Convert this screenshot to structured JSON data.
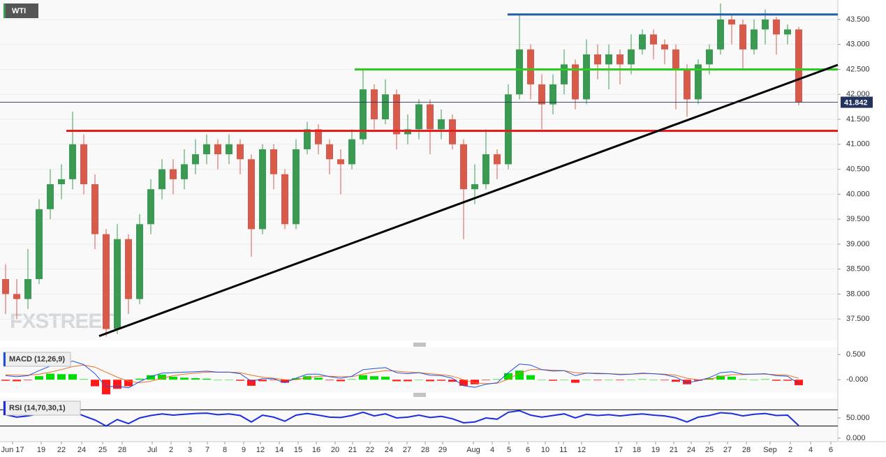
{
  "chart_data": [
    {
      "type": "candlestick",
      "title": "WTI",
      "watermark": "FXSTREET",
      "x": [
        2,
        6,
        10,
        14,
        18,
        22,
        26,
        30,
        34,
        38,
        42,
        46,
        50,
        54,
        58,
        62,
        66,
        70,
        74,
        78,
        82,
        86,
        90,
        94,
        98,
        102,
        106,
        110,
        114,
        118,
        122,
        126,
        130,
        134,
        138,
        142,
        146,
        150,
        154,
        158,
        162,
        166,
        170,
        174,
        178,
        182,
        186,
        190,
        194,
        198,
        202,
        206,
        210,
        214,
        218,
        222,
        226,
        230,
        234,
        238,
        242,
        246,
        250,
        254,
        258,
        262,
        266,
        270,
        274,
        278,
        282,
        286
      ],
      "open": [
        38.3,
        38.0,
        37.9,
        38.3,
        39.7,
        40.2,
        40.3,
        41.0,
        40.2,
        39.2,
        37.3,
        39.1,
        37.9,
        39.4,
        40.1,
        40.5,
        40.3,
        40.6,
        40.8,
        41.0,
        40.8,
        41.0,
        40.7,
        39.3,
        40.9,
        40.4,
        39.4,
        40.9,
        41.3,
        41.0,
        40.7,
        40.6,
        41.1,
        42.1,
        41.5,
        42.0,
        41.2,
        41.3,
        41.8,
        41.3,
        41.5,
        41.0,
        40.1,
        40.2,
        40.8,
        40.6,
        42.0,
        42.9,
        42.2,
        41.8,
        42.2,
        42.6,
        41.9,
        42.8,
        42.6,
        42.8,
        42.6,
        42.9,
        43.2,
        43.0,
        42.9,
        42.5,
        41.9,
        42.6,
        42.9,
        43.5,
        43.4,
        42.9,
        43.3,
        43.5,
        43.2,
        43.3
      ],
      "high": [
        38.6,
        38.3,
        38.9,
        39.9,
        40.5,
        40.6,
        41.65,
        41.2,
        40.4,
        39.3,
        39.4,
        39.2,
        39.6,
        40.3,
        40.7,
        40.7,
        40.9,
        41.1,
        41.2,
        41.1,
        41.2,
        41.1,
        40.8,
        41.0,
        41.0,
        40.5,
        41.1,
        41.45,
        41.4,
        41.1,
        40.9,
        41.3,
        42.5,
        42.2,
        42.3,
        42.1,
        41.6,
        41.9,
        41.9,
        41.7,
        41.6,
        41.1,
        40.6,
        41.3,
        40.9,
        42.2,
        43.58,
        43.0,
        42.4,
        42.4,
        42.9,
        42.7,
        43.1,
        43.0,
        43.0,
        42.9,
        43.2,
        43.3,
        43.3,
        43.1,
        43.0,
        42.6,
        42.7,
        43.0,
        43.82,
        43.6,
        43.5,
        43.5,
        43.7,
        43.55,
        43.4,
        43.35
      ],
      "low": [
        37.6,
        37.5,
        37.7,
        38.2,
        39.5,
        39.9,
        40.1,
        40.0,
        38.9,
        37.15,
        37.2,
        37.6,
        37.8,
        39.2,
        39.9,
        40.0,
        40.1,
        40.4,
        40.6,
        40.5,
        40.6,
        40.4,
        38.75,
        39.2,
        40.1,
        39.3,
        39.3,
        40.8,
        40.8,
        40.4,
        40.0,
        40.5,
        41.0,
        41.3,
        41.4,
        40.9,
        41.0,
        41.1,
        40.8,
        41.1,
        40.9,
        39.1,
        39.8,
        40.1,
        40.3,
        40.5,
        41.9,
        41.9,
        41.3,
        41.6,
        42.0,
        41.7,
        41.8,
        42.3,
        42.1,
        42.2,
        42.4,
        42.8,
        42.7,
        42.6,
        41.7,
        41.55,
        41.8,
        42.4,
        42.8,
        43.0,
        42.5,
        42.8,
        43.0,
        42.8,
        43.0,
        41.78
      ],
      "close": [
        38.0,
        37.9,
        38.3,
        39.7,
        40.2,
        40.3,
        41.0,
        40.2,
        39.2,
        37.3,
        39.1,
        37.9,
        39.4,
        40.1,
        40.5,
        40.3,
        40.6,
        40.8,
        41.0,
        40.8,
        41.0,
        40.7,
        39.3,
        40.9,
        40.4,
        39.4,
        40.9,
        41.3,
        41.0,
        40.7,
        40.6,
        41.1,
        42.1,
        41.5,
        42.0,
        41.2,
        41.3,
        41.8,
        41.3,
        41.5,
        41.0,
        40.1,
        40.2,
        40.8,
        40.6,
        42.0,
        42.9,
        42.2,
        41.8,
        42.2,
        42.6,
        41.9,
        42.8,
        42.6,
        42.8,
        42.6,
        42.9,
        43.2,
        43.0,
        42.9,
        42.5,
        41.9,
        42.6,
        42.9,
        43.5,
        43.4,
        42.9,
        43.3,
        43.5,
        43.2,
        43.3,
        41.84
      ],
      "up_color": "#3a9a52",
      "down_color": "#d75a4a",
      "xlim": [
        0,
        300
      ],
      "xticks": [
        {
          "value": 4.5,
          "label": "Jun 17"
        },
        {
          "value": 14.75,
          "label": "19"
        },
        {
          "value": 22,
          "label": "22"
        },
        {
          "value": 29.25,
          "label": "24"
        },
        {
          "value": 36.75,
          "label": "25"
        },
        {
          "value": 43.75,
          "label": "28"
        },
        {
          "value": 54.5,
          "label": "Jul"
        },
        {
          "value": 61.25,
          "label": "2"
        },
        {
          "value": 68,
          "label": "3"
        },
        {
          "value": 74.25,
          "label": "7"
        },
        {
          "value": 80.5,
          "label": "8"
        },
        {
          "value": 87.25,
          "label": "9"
        },
        {
          "value": 93.25,
          "label": "12"
        },
        {
          "value": 100,
          "label": "14"
        },
        {
          "value": 106.75,
          "label": "15"
        },
        {
          "value": 113.25,
          "label": "16"
        },
        {
          "value": 120,
          "label": "20"
        },
        {
          "value": 126.25,
          "label": "21"
        },
        {
          "value": 132.5,
          "label": "22"
        },
        {
          "value": 139.25,
          "label": "24"
        },
        {
          "value": 145.75,
          "label": "27"
        },
        {
          "value": 152.25,
          "label": "28"
        },
        {
          "value": 158.5,
          "label": "29"
        },
        {
          "value": 169.5,
          "label": "Aug"
        },
        {
          "value": 176.25,
          "label": "4"
        },
        {
          "value": 182.25,
          "label": "5"
        },
        {
          "value": 189,
          "label": "6"
        },
        {
          "value": 195.25,
          "label": "10"
        },
        {
          "value": 201.75,
          "label": "11"
        },
        {
          "value": 208.25,
          "label": "12"
        },
        {
          "value": 221.5,
          "label": "17"
        },
        {
          "value": 228,
          "label": "18"
        },
        {
          "value": 234.75,
          "label": "19"
        },
        {
          "value": 241.25,
          "label": "21"
        },
        {
          "value": 247.5,
          "label": "24"
        },
        {
          "value": 254,
          "label": "25"
        },
        {
          "value": 260.5,
          "label": "27"
        },
        {
          "value": 267.25,
          "label": "28"
        },
        {
          "value": 275.75,
          "label": "Sep"
        },
        {
          "value": 283,
          "label": "2"
        },
        {
          "value": 290.25,
          "label": "4"
        },
        {
          "value": 297.5,
          "label": "6"
        }
      ],
      "ylim": [
        37.07,
        43.89
      ],
      "yticks": [
        {
          "value": 37.5,
          "label": "37.500"
        },
        {
          "value": 38,
          "label": "38.000"
        },
        {
          "value": 38.5,
          "label": "38.500"
        },
        {
          "value": 39,
          "label": "39.000"
        },
        {
          "value": 39.5,
          "label": "39.500"
        },
        {
          "value": 40,
          "label": "40.000"
        },
        {
          "value": 40.5,
          "label": "40.500"
        },
        {
          "value": 41,
          "label": "41.000"
        },
        {
          "value": 41.5,
          "label": "41.500"
        },
        {
          "value": 42,
          "label": "42.000"
        },
        {
          "value": 42.5,
          "label": "42.500"
        },
        {
          "value": 43,
          "label": "43.000"
        },
        {
          "value": 43.5,
          "label": "43.500"
        }
      ],
      "grid": true,
      "hlines": [
        {
          "value": 43.6,
          "x0": 181.75,
          "color": "#1f5fa8"
        },
        {
          "value": 42.5,
          "x0": 127,
          "color": "#2ecc1e"
        },
        {
          "value": 41.27,
          "x0": 23.75,
          "color": "#e81c1c"
        }
      ],
      "trendline": {
        "x": [
          35.5,
          300
        ],
        "y": [
          37.16,
          42.59
        ],
        "color": "#000000"
      },
      "last_price": {
        "value": 41.842,
        "color": "#23335e"
      }
    },
    {
      "type": "macd",
      "title": "MACD (12,26,9)",
      "macd": [
        0.08,
        0.06,
        0.08,
        0.18,
        0.27,
        0.31,
        0.37,
        0.3,
        0.12,
        -0.14,
        -0.13,
        -0.16,
        -0.04,
        0.06,
        0.13,
        0.14,
        0.15,
        0.16,
        0.17,
        0.15,
        0.15,
        0.12,
        -0.03,
        0.02,
        0.02,
        -0.06,
        0.03,
        0.11,
        0.11,
        0.06,
        0.03,
        0.07,
        0.2,
        0.22,
        0.24,
        0.14,
        0.12,
        0.14,
        0.09,
        0.08,
        0.03,
        -0.12,
        -0.15,
        -0.09,
        -0.06,
        0.14,
        0.31,
        0.29,
        0.2,
        0.17,
        0.18,
        0.08,
        0.13,
        0.12,
        0.12,
        0.1,
        0.11,
        0.13,
        0.12,
        0.1,
        0.05,
        -0.06,
        -0.02,
        0.04,
        0.14,
        0.16,
        0.11,
        0.11,
        0.12,
        0.08,
        0.07,
        -0.08
      ],
      "signal": [
        0.1,
        0.09,
        0.09,
        0.11,
        0.15,
        0.2,
        0.26,
        0.29,
        0.25,
        0.15,
        0.05,
        -0.03,
        -0.06,
        -0.03,
        0.03,
        0.08,
        0.11,
        0.13,
        0.15,
        0.15,
        0.15,
        0.14,
        0.09,
        0.05,
        0.03,
        0.0,
        0.0,
        0.04,
        0.07,
        0.07,
        0.06,
        0.06,
        0.11,
        0.15,
        0.18,
        0.17,
        0.15,
        0.14,
        0.12,
        0.1,
        0.07,
        0.0,
        -0.06,
        -0.08,
        -0.07,
        0.01,
        0.13,
        0.2,
        0.2,
        0.19,
        0.18,
        0.14,
        0.13,
        0.13,
        0.12,
        0.11,
        0.11,
        0.12,
        0.12,
        0.11,
        0.09,
        0.03,
        0.0,
        0.01,
        0.06,
        0.1,
        0.1,
        0.11,
        0.11,
        0.1,
        0.09,
        0.03
      ],
      "hist": [
        -0.02,
        -0.03,
        -0.01,
        0.07,
        0.12,
        0.11,
        0.11,
        0.01,
        -0.13,
        -0.29,
        -0.18,
        -0.13,
        0.02,
        0.09,
        0.1,
        0.06,
        0.04,
        0.03,
        0.02,
        0,
        0,
        -0.02,
        -0.12,
        -0.03,
        -0.01,
        -0.06,
        0.03,
        0.07,
        0.04,
        -0.01,
        -0.03,
        0.01,
        0.09,
        0.07,
        0.06,
        -0.03,
        -0.03,
        0,
        -0.03,
        -0.02,
        -0.04,
        -0.12,
        -0.09,
        -0.01,
        0.01,
        0.13,
        0.18,
        0.09,
        0,
        -0.02,
        0,
        -0.06,
        0,
        -0.01,
        0,
        -0.01,
        0,
        0.01,
        0,
        -0.01,
        -0.04,
        -0.09,
        -0.02,
        0.03,
        0.08,
        0.06,
        0.01,
        0,
        0.01,
        -0.02,
        -0.02,
        -0.11
      ],
      "macd_color": "#2050e0",
      "signal_color": "#f07020",
      "up_color": "#00dd00",
      "down_color": "#ff1a1a",
      "ylim": [
        -0.26,
        0.64
      ],
      "yticks": [
        {
          "value": 0.5,
          "label": "0.500"
        },
        {
          "value": 0,
          "label": "-0.000"
        }
      ]
    },
    {
      "type": "line",
      "title": "RSI (14,70,30,1)",
      "values": [
        58,
        52,
        55,
        60,
        62,
        63,
        66,
        55,
        45,
        30,
        46,
        36,
        50,
        56,
        60,
        57,
        59,
        61,
        62,
        58,
        60,
        56,
        40,
        57,
        52,
        42,
        57,
        61,
        57,
        52,
        51,
        56,
        64,
        55,
        60,
        50,
        52,
        57,
        51,
        54,
        48,
        38,
        40,
        50,
        47,
        64,
        68,
        57,
        52,
        56,
        60,
        50,
        59,
        56,
        58,
        55,
        58,
        60,
        57,
        55,
        50,
        40,
        52,
        56,
        63,
        61,
        55,
        59,
        61,
        56,
        57,
        31
      ],
      "color": "#1a2ee0",
      "ylim": [
        -8.6,
        98.3
      ],
      "yticks": [
        {
          "value": 50,
          "label": "50.000"
        },
        {
          "value": 0,
          "label": "0.000"
        }
      ],
      "levels": [
        70,
        30
      ]
    }
  ]
}
